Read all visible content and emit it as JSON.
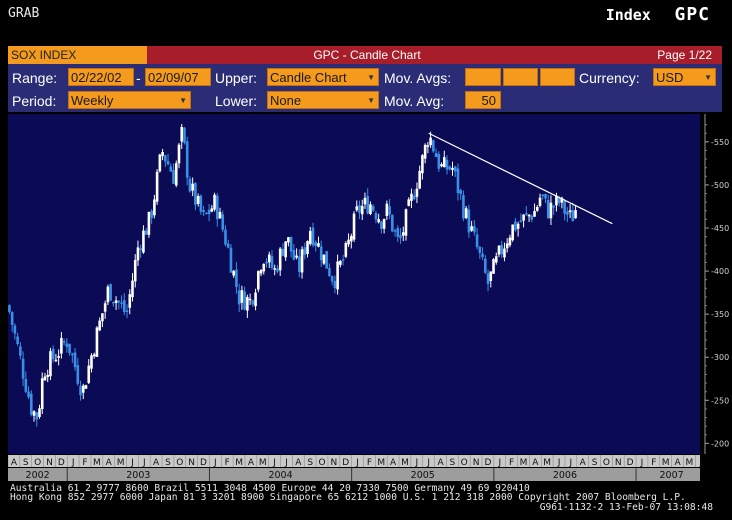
{
  "top_left": "GRAB",
  "top_right": {
    "label": "Index",
    "ticker": "GPC"
  },
  "title_bar": {
    "index": "SOX INDEX",
    "chart_name": "GPC - Candle Chart",
    "page": "Page 1/22"
  },
  "params": {
    "range_label": "Range:",
    "range_start": "02/22/02",
    "range_sep": "-",
    "range_end": "02/09/07",
    "upper_label": "Upper:",
    "upper_value": "Candle Chart",
    "movavgs_label": "Mov. Avgs:",
    "currency_label": "Currency:",
    "currency_value": "USD",
    "period_label": "Period:",
    "period_value": "Weekly",
    "lower_label": "Lower:",
    "lower_value": "None",
    "movavg_label": "Mov. Avg:",
    "movavg_value": "50"
  },
  "footer": {
    "line1": "Australia 61 2 9777 8600        Brazil 5511 3048 4500          Europe 44 20 7330 7500          Germany 49 69 920410",
    "line2": "Hong Kong 852 2977 6000 Japan 81 3 3201 8900 Singapore 65 6212 1000 U.S. 1 212 318 2000 Copyright 2007 Bloomberg L.P.",
    "line3": "G961-1132-2 13-Feb-07 13:08:48"
  },
  "colors": {
    "background": "#000000",
    "plot_bg": "#0b0a55",
    "accent_orange": "#f49a1c",
    "title_red": "#a81d2a",
    "param_bg": "#2a2d75",
    "candle_up": "#ffffff",
    "candle_down": "#3a8fe6"
  },
  "chart_data": {
    "type": "candlestick",
    "title": "GPC - Candle Chart",
    "period": "Weekly",
    "ylim": [
      190,
      580
    ],
    "yticks": [
      200,
      250,
      300,
      350,
      400,
      450,
      500,
      550
    ],
    "ytick_labels": [
      "200",
      "250",
      "300",
      "350",
      "400",
      "450",
      "500",
      "550"
    ],
    "month_labels": [
      "A",
      "S",
      "O",
      "N",
      "D",
      "J",
      "F",
      "M",
      "A",
      "M",
      "J",
      "J",
      "A",
      "S",
      "O",
      "N",
      "D",
      "J",
      "F",
      "M",
      "A",
      "M",
      "J",
      "J",
      "A",
      "S",
      "O",
      "N",
      "D",
      "J",
      "F",
      "M",
      "A",
      "M",
      "J",
      "J",
      "A",
      "S",
      "O",
      "N",
      "D",
      "J",
      "F",
      "M",
      "A",
      "M",
      "J",
      "J",
      "A",
      "S",
      "O",
      "N",
      "D",
      "J",
      "F",
      "M",
      "A",
      "M",
      "J"
    ],
    "year_labels": [
      {
        "label": "2002",
        "month_index": 0
      },
      {
        "label": "2003",
        "month_index": 5
      },
      {
        "label": "2004",
        "month_index": 17
      },
      {
        "label": "2005",
        "month_index": 29
      },
      {
        "label": "2006",
        "month_index": 41
      },
      {
        "label": "2007",
        "month_index": 53
      }
    ],
    "price_path": [
      [
        0,
        360
      ],
      [
        2.0,
        240
      ],
      [
        2.5,
        230
      ],
      [
        3.0,
        285
      ],
      [
        5.0,
        320
      ],
      [
        6.3,
        260
      ],
      [
        7.0,
        300
      ],
      [
        8.5,
        380
      ],
      [
        10.0,
        350
      ],
      [
        11.0,
        430
      ],
      [
        12.0,
        460
      ],
      [
        13.0,
        540
      ],
      [
        14.0,
        510
      ],
      [
        14.7,
        560
      ],
      [
        15.3,
        500
      ],
      [
        16.5,
        460
      ],
      [
        17.5,
        480
      ],
      [
        18.5,
        430
      ],
      [
        19.5,
        370
      ],
      [
        20.5,
        365
      ],
      [
        21.5,
        420
      ],
      [
        22.5,
        400
      ],
      [
        23.5,
        440
      ],
      [
        24.5,
        400
      ],
      [
        25.5,
        450
      ],
      [
        26.5,
        420
      ],
      [
        27.5,
        390
      ],
      [
        28.5,
        420
      ],
      [
        29.5,
        470
      ],
      [
        30.5,
        480
      ],
      [
        31.5,
        460
      ],
      [
        32.0,
        470
      ],
      [
        33.0,
        430
      ],
      [
        34.0,
        480
      ],
      [
        35.0,
        530
      ],
      [
        35.5,
        560
      ],
      [
        36.5,
        520
      ],
      [
        37.5,
        520
      ],
      [
        38.5,
        470
      ],
      [
        39.5,
        430
      ],
      [
        40.5,
        385
      ],
      [
        41.5,
        420
      ],
      [
        42.5,
        450
      ],
      [
        43.5,
        460
      ],
      [
        44.5,
        470
      ],
      [
        45.0,
        490
      ],
      [
        45.5,
        470
      ],
      [
        46.5,
        480
      ],
      [
        47.5,
        460
      ],
      [
        48.0,
        475
      ]
    ],
    "trendline": {
      "start": [
        35.5,
        560
      ],
      "end": [
        51.0,
        455
      ]
    }
  }
}
